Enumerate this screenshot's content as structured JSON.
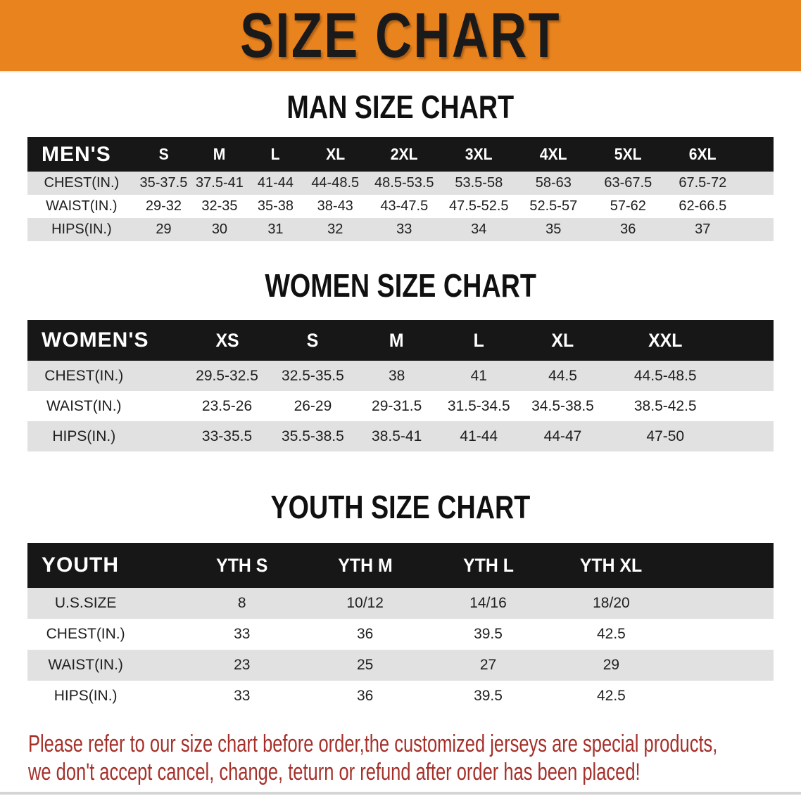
{
  "banner": {
    "title": "SIZE CHART"
  },
  "theme": {
    "banner-bg": "#E8831E",
    "banner-text": "#1A1A1A",
    "header-band": "#171717",
    "header-text": "#FFFFFF",
    "stripe": "#E1E1E1",
    "cell-text": "#1E1E1E",
    "disclaimer": "#A5302A"
  },
  "men": {
    "heading": "MAN SIZE CHART",
    "table": {
      "label": "MEN'S",
      "sizes": [
        "S",
        "M",
        "L",
        "XL",
        "2XL",
        "3XL",
        "4XL",
        "5XL",
        "6XL"
      ],
      "rows": [
        {
          "label": "CHEST(IN.)",
          "values": [
            "35-37.5",
            "37.5-41",
            "41-44",
            "44-48.5",
            "48.5-53.5",
            "53.5-58",
            "58-63",
            "63-67.5",
            "67.5-72"
          ]
        },
        {
          "label": "WAIST(IN.)",
          "values": [
            "29-32",
            "32-35",
            "35-38",
            "38-43",
            "43-47.5",
            "47.5-52.5",
            "52.5-57",
            "57-62",
            "62-66.5"
          ]
        },
        {
          "label": "HIPS(IN.)",
          "values": [
            "29",
            "30",
            "31",
            "32",
            "33",
            "34",
            "35",
            "36",
            "37"
          ]
        }
      ]
    }
  },
  "women": {
    "heading": "WOMEN SIZE CHART",
    "table": {
      "label": "WOMEN'S",
      "sizes": [
        "XS",
        "S",
        "M",
        "L",
        "XL",
        "XXL"
      ],
      "rows": [
        {
          "label": "CHEST(IN.)",
          "values": [
            "29.5-32.5",
            "32.5-35.5",
            "38",
            "41",
            "44.5",
            "44.5-48.5"
          ]
        },
        {
          "label": "WAIST(IN.)",
          "values": [
            "23.5-26",
            "26-29",
            "29-31.5",
            "31.5-34.5",
            "34.5-38.5",
            "38.5-42.5"
          ]
        },
        {
          "label": "HIPS(IN.)",
          "values": [
            "33-35.5",
            "35.5-38.5",
            "38.5-41",
            "41-44",
            "44-47",
            "47-50"
          ]
        }
      ]
    }
  },
  "youth": {
    "heading": "YOUTH SIZE CHART",
    "table": {
      "label": "YOUTH",
      "sizes": [
        "YTH S",
        "YTH M",
        "YTH L",
        "YTH XL"
      ],
      "rows": [
        {
          "label": "U.S.SIZE",
          "values": [
            "8",
            "10/12",
            "14/16",
            "18/20"
          ]
        },
        {
          "label": "CHEST(IN.)",
          "values": [
            "33",
            "36",
            "39.5",
            "42.5"
          ]
        },
        {
          "label": "WAIST(IN.)",
          "values": [
            "23",
            "25",
            "27",
            "29"
          ]
        },
        {
          "label": "HIPS(IN.)",
          "values": [
            "33",
            "36",
            "39.5",
            "42.5"
          ]
        }
      ]
    }
  },
  "disclaimer": {
    "line1": "Please refer to our size chart before order,the customized jerseys are special products,",
    "line2": "we don't accept cancel, change, teturn or refund after order has been placed!"
  }
}
